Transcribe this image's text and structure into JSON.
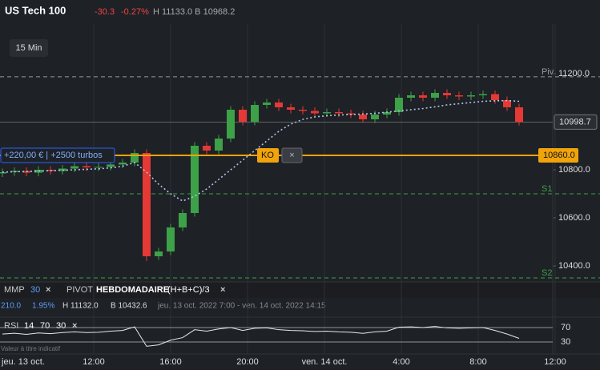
{
  "header": {
    "symbol": "US Tech 100",
    "change": "-30.3",
    "change_pct": "-0.27%",
    "high_low": "H 11133.0 B 10968.2"
  },
  "timeframe": "15 Min",
  "chart_data": {
    "type": "candlestick",
    "x": [
      7.25,
      7.875,
      8.5,
      9.125,
      9.75,
      10.375,
      11,
      11.625,
      12.25,
      12.875,
      13.5,
      14.125,
      14.75,
      15.375,
      16,
      16.625,
      17.25,
      17.875,
      18.5,
      19.125,
      19.75,
      20.375,
      21,
      21.625,
      22.25,
      22.875,
      23.5,
      24.125,
      24.75,
      25.375,
      26,
      26.625,
      27.25,
      27.875,
      28.5,
      29.125,
      29.75,
      30.375,
      31,
      31.625,
      32.25,
      32.875,
      33.5,
      34.125
    ],
    "open": [
      10785,
      10790,
      10795,
      10788,
      10800,
      10795,
      10805,
      10815,
      10810,
      10812,
      10822,
      10830,
      10870,
      10440,
      10460,
      10560,
      10620,
      10900,
      10880,
      10930,
      11050,
      11000,
      11070,
      11080,
      11060,
      11050,
      11045,
      11035,
      11040,
      11035,
      11030,
      11010,
      11030,
      11040,
      11100,
      11110,
      11100,
      11120,
      11110,
      11105,
      11110,
      11115,
      11090,
      11060
    ],
    "high": [
      10805,
      10810,
      10810,
      10815,
      10815,
      10820,
      10830,
      10830,
      10827,
      10837,
      10845,
      10885,
      10885,
      10475,
      10575,
      10635,
      10915,
      10915,
      10945,
      11065,
      11065,
      11085,
      11095,
      11095,
      11075,
      11065,
      11060,
      11055,
      11055,
      11050,
      11045,
      11045,
      11055,
      11115,
      11125,
      11125,
      11135,
      11135,
      11125,
      11125,
      11130,
      11130,
      11105,
      11075
    ],
    "low": [
      10770,
      10775,
      10773,
      10773,
      10780,
      10780,
      10790,
      10795,
      10795,
      10797,
      10807,
      10815,
      10420,
      10425,
      10445,
      10545,
      10605,
      10865,
      10865,
      10915,
      10985,
      10985,
      11055,
      11045,
      11035,
      11030,
      11020,
      11020,
      11020,
      11015,
      10995,
      10995,
      11015,
      11025,
      11085,
      11085,
      11085,
      11095,
      11090,
      11090,
      11095,
      11075,
      11045,
      10984
    ],
    "close": [
      10790,
      10795,
      10788,
      10800,
      10795,
      10805,
      10815,
      10810,
      10812,
      10822,
      10830,
      10870,
      10440,
      10460,
      10560,
      10620,
      10900,
      10880,
      10930,
      11050,
      11000,
      11070,
      11080,
      11060,
      11050,
      11045,
      11035,
      11040,
      11035,
      11030,
      11010,
      11030,
      11040,
      11100,
      11110,
      11100,
      11120,
      11110,
      11105,
      11110,
      11115,
      11090,
      11060,
      10999
    ],
    "up_color": "#3da148",
    "down_color": "#e53935",
    "xlim": [
      7.125,
      35.875
    ],
    "ylim": [
      10333.3,
      11406.7
    ],
    "yticks": [
      {
        "value": 11200,
        "label": "11200.0"
      },
      {
        "value": 10800,
        "label": "10800.0"
      },
      {
        "value": 10600,
        "label": "10600.0"
      },
      {
        "value": 10400,
        "label": "10400.0"
      }
    ],
    "xticks": [
      {
        "value": 12,
        "label": "12:00"
      },
      {
        "value": 16,
        "label": "16:00"
      },
      {
        "value": 20,
        "label": "20:00"
      },
      {
        "value": 24,
        "label": "ven. 14 oct."
      },
      {
        "value": 28,
        "label": "4:00"
      },
      {
        "value": 32,
        "label": "8:00"
      },
      {
        "value": 36,
        "label": "12:00"
      }
    ],
    "start_label": "jeu. 13 oct.",
    "grid": true,
    "moving_average": {
      "name": "MMP",
      "period": 30,
      "color": "#aec6e8",
      "values": [
        10790,
        10792,
        10793,
        10795,
        10796,
        10798,
        10800,
        10802,
        10804,
        10808,
        10815,
        10830,
        10790,
        10740,
        10700,
        10670,
        10690,
        10720,
        10760,
        10800,
        10840,
        10880,
        10920,
        10960,
        10990,
        11010,
        11020,
        11025,
        11028,
        11030,
        11032,
        11035,
        11040,
        11045,
        11050,
        11055,
        11062,
        11070,
        11075,
        11080,
        11085,
        11087,
        11088,
        11085
      ]
    },
    "levels": [
      {
        "name": "Piv",
        "value": 11187,
        "color": "#9a9a9a"
      },
      {
        "name": "S1",
        "value": 10700,
        "color": "#3da148"
      },
      {
        "name": "S2",
        "value": 10350,
        "color": "#3da148"
      }
    ],
    "last_price": {
      "value": 10998.7,
      "label": "10998.7"
    },
    "knockout": {
      "value": 10860,
      "label": "10860.0",
      "tag": "KO",
      "close": "×",
      "color": "#f0a30a"
    },
    "position": "+220,00 € | +2500 turbos"
  },
  "indicator_bar": {
    "ma_name": "MMP",
    "ma_period": "30",
    "ma_close": "×",
    "pivot": "PIVOT",
    "pivot_period": "HEBDOMADAIRE",
    "pivot_formula": "(H+B+C)/3",
    "pivot_close": "×"
  },
  "stats": {
    "change": "210.0",
    "change_pct": "1.95%",
    "high": "H 11132.0",
    "low": "B 10432.6",
    "range": "jeu. 13 oct. 2022 7:00 - ven. 14 oct. 2022 14:15"
  },
  "rsi": {
    "name": "RSI",
    "period": 14,
    "upper": 70,
    "lower": 30,
    "close": "×",
    "note": "Valeur à titre indicatif",
    "ylim": [
      1.1,
      94.4
    ],
    "yticks": [
      70,
      30
    ],
    "values": [
      52,
      54,
      51,
      55,
      53,
      56,
      58,
      56,
      57,
      60,
      62,
      72,
      18,
      22,
      35,
      42,
      64,
      60,
      66,
      70,
      62,
      68,
      69,
      64,
      62,
      61,
      59,
      60,
      58,
      57,
      54,
      58,
      60,
      71,
      72,
      70,
      73,
      69,
      68,
      69,
      70,
      62,
      52,
      40
    ]
  }
}
